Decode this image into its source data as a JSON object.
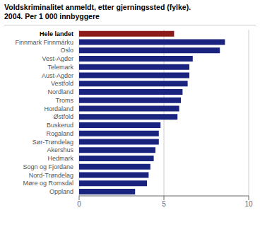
{
  "chart_data": {
    "type": "bar",
    "title": "Voldskriminalitet anmeldt, etter gjerningssted (fylke).",
    "subtitle": "2004. Per 1 000 innbyggere",
    "orientation": "horizontal",
    "categories": [
      "Hele landet",
      "Finnmark Finnmárku",
      "Oslo",
      "Vest-Agder",
      "Telemark",
      "Aust-Agder",
      "Vestfold",
      "Nordland",
      "Troms",
      "Hordaland",
      "Østfold",
      "Buskerud",
      "Rogaland",
      "Sør-Trøndelag",
      "Akershus",
      "Hedmark",
      "Sogn og Fjordane",
      "Nord-Trøndelag",
      "Møre og Romsdal",
      "Oppland"
    ],
    "values": [
      5.6,
      8.6,
      8.3,
      6.7,
      6.5,
      6.5,
      6.4,
      6.1,
      6.0,
      5.9,
      5.8,
      4.8,
      4.7,
      4.7,
      4.5,
      4.4,
      4.2,
      4.1,
      4.0,
      3.3
    ],
    "colors": [
      "#8b1a1a",
      "#1a237e",
      "#1a237e",
      "#1a237e",
      "#1a237e",
      "#1a237e",
      "#1a237e",
      "#1a237e",
      "#1a237e",
      "#1a237e",
      "#1a237e",
      "#1a237e",
      "#1a237e",
      "#1a237e",
      "#1a237e",
      "#1a237e",
      "#1a237e",
      "#1a237e",
      "#1a237e",
      "#1a237e"
    ],
    "xlim": [
      0,
      10
    ],
    "xticks": [
      0,
      5,
      10
    ],
    "grid": true
  }
}
